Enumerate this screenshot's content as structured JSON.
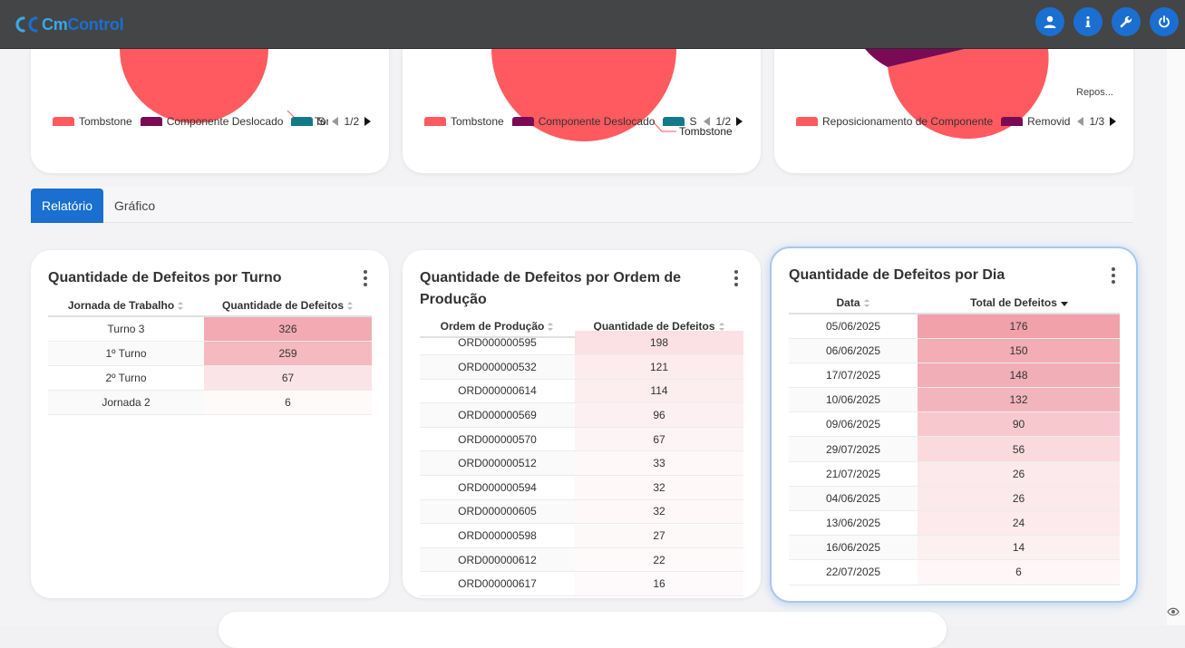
{
  "app": {
    "logo_cm": "Cm",
    "logo_control": "Control",
    "brand_color": "#1a6fd0"
  },
  "topbar": {
    "buttons": [
      {
        "icon": "user-icon"
      },
      {
        "icon": "info-icon"
      },
      {
        "icon": "wrench-icon"
      },
      {
        "icon": "power-icon"
      }
    ]
  },
  "pie_cards": [
    {
      "label_callout": "Tombston...",
      "legend": [
        {
          "label": "Tombstone",
          "color": "#ff5a5f"
        },
        {
          "label": "Componente Deslocado",
          "color": "#7a0a55"
        },
        {
          "label": "S",
          "color": "#127a86"
        }
      ],
      "page": "1/2"
    },
    {
      "label_callout": "Tombstone",
      "legend": [
        {
          "label": "Tombstone",
          "color": "#ff5a5f"
        },
        {
          "label": "Componente Deslocado",
          "color": "#7a0a55"
        },
        {
          "label": "S",
          "color": "#127a86"
        }
      ],
      "page": "1/2"
    },
    {
      "label_callout": "Repos...",
      "legend": [
        {
          "label": "Reposicionamento de Componente",
          "color": "#ff5a5f"
        },
        {
          "label": "Removid",
          "color": "#7a0a55"
        }
      ],
      "page": "1/3"
    }
  ],
  "tabs": {
    "report": "Relatório",
    "chart": "Gráfico"
  },
  "turno_card": {
    "title": "Quantidade de Defeitos por Turno",
    "headers": [
      "Jornada de Trabalho",
      "Quantidade de Defeitos"
    ],
    "rows": [
      {
        "label": "Turno 3",
        "value": 326,
        "color": "#f3aab3"
      },
      {
        "label": "1º Turno",
        "value": 259,
        "color": "#f5b9c0"
      },
      {
        "label": "2º Turno",
        "value": 67,
        "color": "#fbe4e7"
      },
      {
        "label": "Jornada 2",
        "value": 6,
        "color": "#fefafa"
      }
    ]
  },
  "ordem_card": {
    "title_line1": "Quantidade de Defeitos por Ordem de",
    "title_line2": "Produção",
    "headers": [
      "Ordem de Produção",
      "Quantidade de Defeitos"
    ],
    "rows": [
      {
        "label": "ORD000000595",
        "value": 198,
        "color": "#fbe1e4"
      },
      {
        "label": "ORD000000532",
        "value": 121,
        "color": "#fcecee"
      },
      {
        "label": "ORD000000614",
        "value": 114,
        "color": "#fcedef"
      },
      {
        "label": "ORD000000569",
        "value": 96,
        "color": "#fdf0f2"
      },
      {
        "label": "ORD000000570",
        "value": 67,
        "color": "#fdf4f5"
      },
      {
        "label": "ORD000000512",
        "value": 33,
        "color": "#fef8f8"
      },
      {
        "label": "ORD000000594",
        "value": 32,
        "color": "#fef8f8"
      },
      {
        "label": "ORD000000605",
        "value": 32,
        "color": "#fef8f8"
      },
      {
        "label": "ORD000000598",
        "value": 27,
        "color": "#fef9f9"
      },
      {
        "label": "ORD000000612",
        "value": 22,
        "color": "#fef9fa"
      },
      {
        "label": "ORD000000617",
        "value": 16,
        "color": "#fefafb"
      }
    ]
  },
  "dia_card": {
    "title": "Quantidade de Defeitos por Dia",
    "headers": [
      "Data",
      "Total de Defeitos"
    ],
    "rows": [
      {
        "label": "05/06/2025",
        "value": 176,
        "color": "#f0a1aa"
      },
      {
        "label": "06/06/2025",
        "value": 150,
        "color": "#f2adb5"
      },
      {
        "label": "17/07/2025",
        "value": 148,
        "color": "#f2aeb6"
      },
      {
        "label": "10/06/2025",
        "value": 132,
        "color": "#f3b5bd"
      },
      {
        "label": "09/06/2025",
        "value": 90,
        "color": "#f7c9cf"
      },
      {
        "label": "29/07/2025",
        "value": 56,
        "color": "#fadadd"
      },
      {
        "label": "21/07/2025",
        "value": 26,
        "color": "#fce9eb"
      },
      {
        "label": "04/06/2025",
        "value": 26,
        "color": "#fce9eb"
      },
      {
        "label": "13/06/2025",
        "value": 24,
        "color": "#fceaec"
      },
      {
        "label": "16/06/2025",
        "value": 14,
        "color": "#fdf0f1"
      },
      {
        "label": "22/07/2025",
        "value": 6,
        "color": "#fef6f7"
      }
    ]
  }
}
